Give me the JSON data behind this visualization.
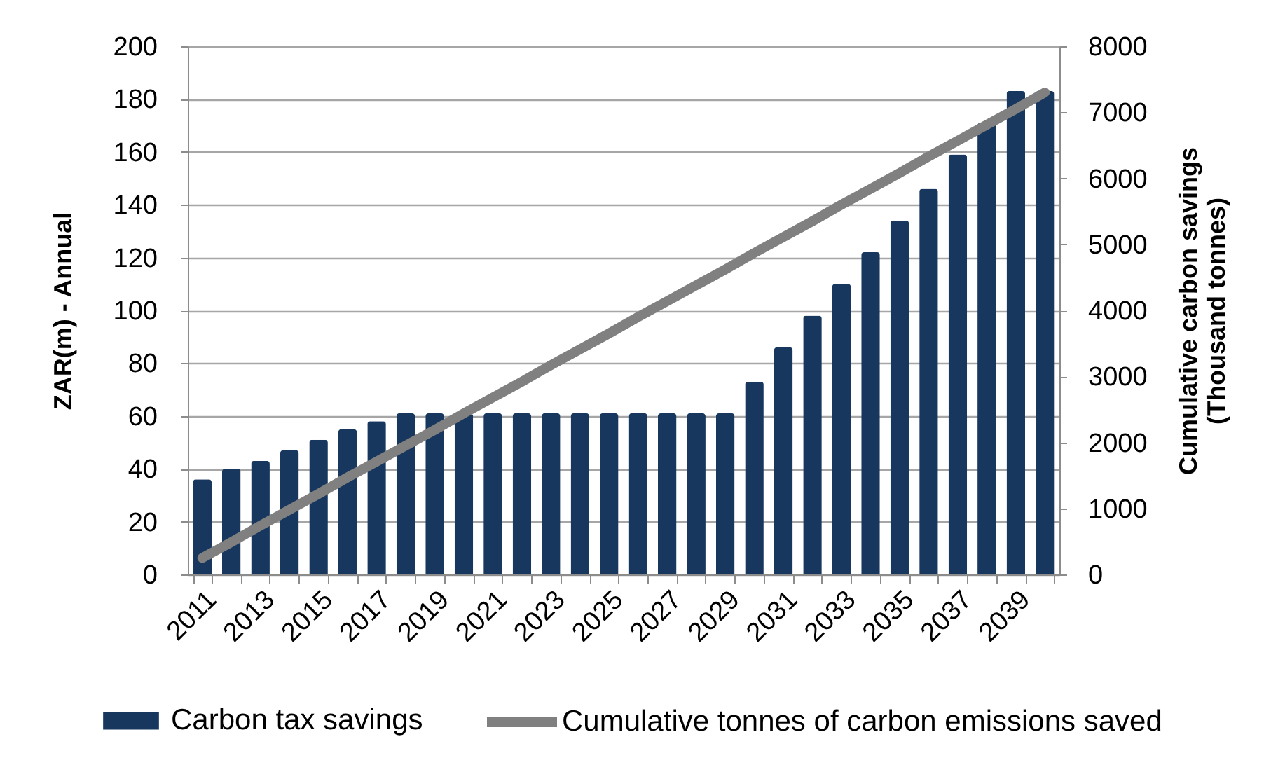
{
  "chart_data": {
    "type": "bar",
    "ylabel": "ZAR(m) - Annual",
    "y2label": "Cumulative carbon savings\n(Thousand tonnes)",
    "categories": [
      "2011",
      null,
      "2013",
      null,
      "2015",
      null,
      "2017",
      null,
      "2019",
      null,
      "2021",
      null,
      "2023",
      null,
      "2025",
      null,
      "2027",
      null,
      "2029",
      null,
      "2031",
      null,
      "2033",
      null,
      "2035",
      null,
      "2037",
      null,
      "2039",
      null
    ],
    "series": [
      {
        "name": "Carbon tax savings",
        "color": "#17375e",
        "values": [
          36,
          40,
          43,
          47,
          51,
          55,
          58,
          61,
          61,
          61,
          61,
          61,
          61,
          61,
          61,
          61,
          61,
          61,
          61,
          73,
          86,
          98,
          110,
          122,
          134,
          146,
          159,
          171,
          183,
          183
        ]
      },
      {
        "name": "Cumulative tonnes of carbon emissions saved",
        "type": "line",
        "axis": "y2",
        "color": "#808080",
        "values": [
          250,
          490,
          740,
          980,
          1220,
          1470,
          1710,
          1950,
          2190,
          2440,
          2680,
          2920,
          3170,
          3410,
          3650,
          3900,
          4140,
          4380,
          4620,
          4870,
          5110,
          5350,
          5600,
          5840,
          6080,
          6330,
          6570,
          6810,
          7050,
          7300
        ]
      }
    ],
    "ylim": [
      0,
      200
    ],
    "yticks": [
      0,
      20,
      40,
      60,
      80,
      100,
      120,
      140,
      160,
      180,
      200
    ],
    "y2lim": [
      0,
      8000
    ],
    "y2ticks": [
      0,
      1000,
      2000,
      3000,
      4000,
      5000,
      6000,
      7000,
      8000
    ],
    "grid": "y",
    "legend": "bottom"
  }
}
